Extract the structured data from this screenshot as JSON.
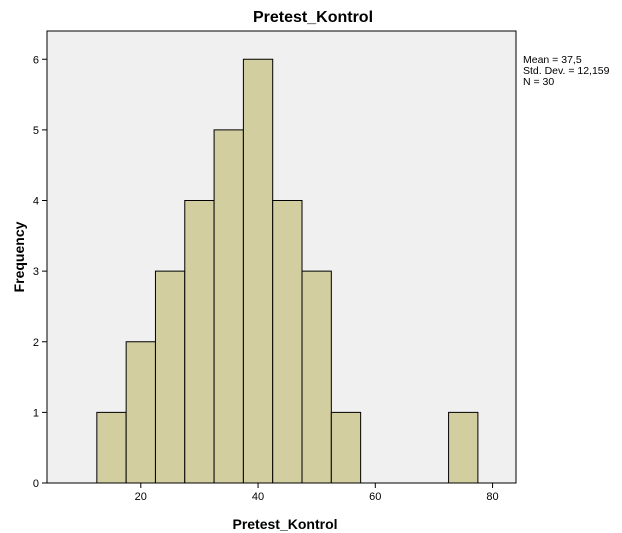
{
  "chart_data": {
    "type": "bar",
    "title": "Pretest_Kontrol",
    "xlabel": "Pretest_Kontrol",
    "ylabel": "Frequency",
    "bin_width": 5,
    "bins": [
      {
        "start": 12.5,
        "end": 17.5,
        "count": 1
      },
      {
        "start": 17.5,
        "end": 22.5,
        "count": 2
      },
      {
        "start": 22.5,
        "end": 27.5,
        "count": 3
      },
      {
        "start": 27.5,
        "end": 32.5,
        "count": 4
      },
      {
        "start": 32.5,
        "end": 37.5,
        "count": 5
      },
      {
        "start": 37.5,
        "end": 42.5,
        "count": 6
      },
      {
        "start": 42.5,
        "end": 47.5,
        "count": 4
      },
      {
        "start": 47.5,
        "end": 52.5,
        "count": 3
      },
      {
        "start": 52.5,
        "end": 57.5,
        "count": 1
      },
      {
        "start": 72.5,
        "end": 77.5,
        "count": 1
      }
    ],
    "xlim": [
      4,
      84
    ],
    "ylim": [
      0,
      6.4
    ],
    "xticks": [
      20,
      40,
      60,
      80
    ],
    "yticks": [
      0,
      1,
      2,
      3,
      4,
      5,
      6
    ],
    "grid": false,
    "stats": [
      "Mean = 37,5",
      "Std. Dev. = 12,159",
      "N = 30"
    ],
    "stats_placement": "top-right",
    "colors": {
      "bar_fill": "#d3cea0",
      "bar_stroke": "#000000",
      "plot_background": "#f0f0f0"
    }
  }
}
